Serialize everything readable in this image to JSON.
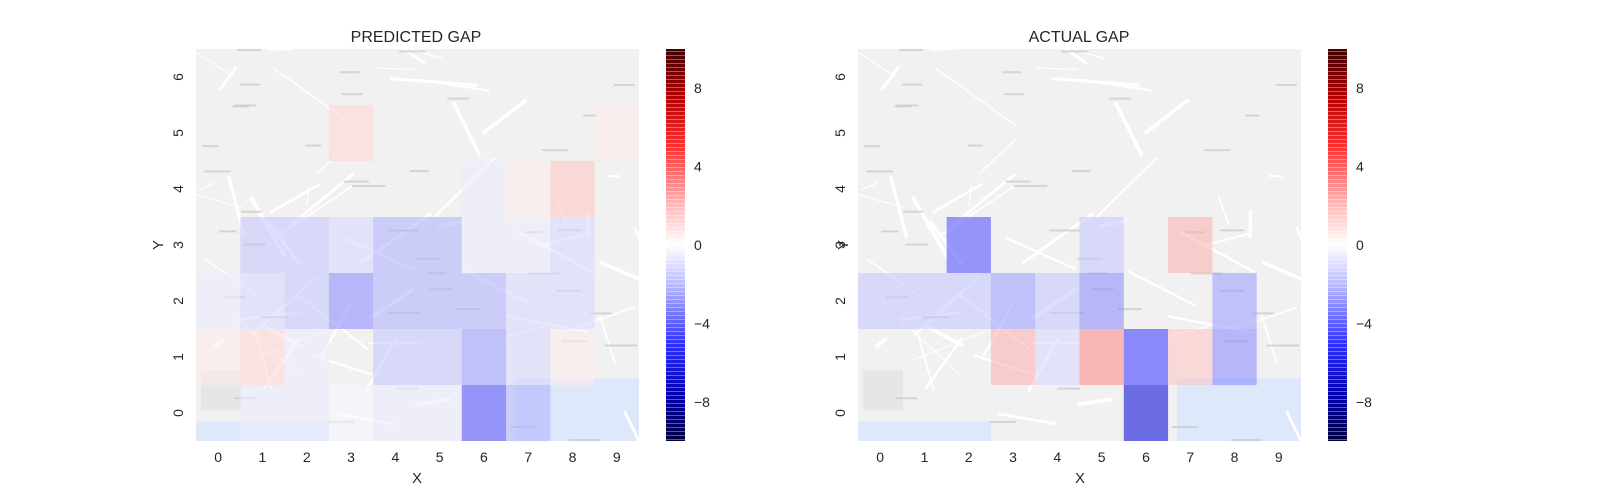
{
  "chart_data": [
    {
      "type": "heatmap",
      "title": "PREDICTED GAP",
      "xlabel": "X",
      "ylabel": "Y",
      "x_ticks": [
        "0",
        "1",
        "2",
        "3",
        "4",
        "5",
        "6",
        "7",
        "8",
        "9"
      ],
      "y_ticks": [
        "0",
        "1",
        "2",
        "3",
        "4",
        "5",
        "6"
      ],
      "xlim": [
        -0.5,
        9.5
      ],
      "ylim": [
        -0.5,
        6.5
      ],
      "background": "city street map",
      "colormap": "seismic",
      "colorbar": {
        "range": [
          -10,
          10
        ],
        "ticks": [
          "8",
          "4",
          "0",
          "−4",
          "−8"
        ],
        "tick_values": [
          8,
          4,
          0,
          -4,
          -8
        ]
      },
      "cells": [
        {
          "x": 1,
          "y": 0,
          "value": -0.5
        },
        {
          "x": 2,
          "y": 0,
          "value": -0.5
        },
        {
          "x": 3,
          "y": 0,
          "value": -0.2
        },
        {
          "x": 4,
          "y": 0,
          "value": -0.5
        },
        {
          "x": 5,
          "y": 0,
          "value": -0.5
        },
        {
          "x": 6,
          "y": 0,
          "value": -4.5
        },
        {
          "x": 7,
          "y": 0,
          "value": -2.0
        },
        {
          "x": 0,
          "y": 1,
          "value": 0.5
        },
        {
          "x": 1,
          "y": 1,
          "value": 1.0
        },
        {
          "x": 2,
          "y": 1,
          "value": -0.5
        },
        {
          "x": 4,
          "y": 1,
          "value": -1.5
        },
        {
          "x": 5,
          "y": 1,
          "value": -1.5
        },
        {
          "x": 6,
          "y": 1,
          "value": -2.5
        },
        {
          "x": 7,
          "y": 1,
          "value": -1.0
        },
        {
          "x": 8,
          "y": 1,
          "value": 0.5
        },
        {
          "x": 0,
          "y": 2,
          "value": -0.5
        },
        {
          "x": 1,
          "y": 2,
          "value": -1.0
        },
        {
          "x": 2,
          "y": 2,
          "value": -1.5
        },
        {
          "x": 3,
          "y": 2,
          "value": -3.0
        },
        {
          "x": 4,
          "y": 2,
          "value": -2.0
        },
        {
          "x": 5,
          "y": 2,
          "value": -2.0
        },
        {
          "x": 6,
          "y": 2,
          "value": -2.0
        },
        {
          "x": 7,
          "y": 2,
          "value": -1.0
        },
        {
          "x": 8,
          "y": 2,
          "value": -1.0
        },
        {
          "x": 1,
          "y": 3,
          "value": -1.5
        },
        {
          "x": 2,
          "y": 3,
          "value": -1.5
        },
        {
          "x": 3,
          "y": 3,
          "value": -1.0
        },
        {
          "x": 4,
          "y": 3,
          "value": -2.0
        },
        {
          "x": 5,
          "y": 3,
          "value": -2.0
        },
        {
          "x": 6,
          "y": 3,
          "value": -0.5
        },
        {
          "x": 7,
          "y": 3,
          "value": -0.5
        },
        {
          "x": 8,
          "y": 3,
          "value": -1.0
        },
        {
          "x": 6,
          "y": 4,
          "value": -0.5
        },
        {
          "x": 7,
          "y": 4,
          "value": 0.5
        },
        {
          "x": 8,
          "y": 4,
          "value": 1.5
        },
        {
          "x": 3,
          "y": 5,
          "value": 1.0
        },
        {
          "x": 9,
          "y": 5,
          "value": 0.5
        }
      ]
    },
    {
      "type": "heatmap",
      "title": "ACTUAL GAP",
      "xlabel": "X",
      "ylabel": "Y",
      "x_ticks": [
        "0",
        "1",
        "2",
        "3",
        "4",
        "5",
        "6",
        "7",
        "8",
        "9"
      ],
      "y_ticks": [
        "0",
        "1",
        "2",
        "3",
        "4",
        "5",
        "6"
      ],
      "xlim": [
        -0.5,
        9.5
      ],
      "ylim": [
        -0.5,
        6.5
      ],
      "background": "city street map",
      "colormap": "seismic",
      "colorbar": {
        "range": [
          -10,
          10
        ],
        "ticks": [
          "8",
          "4",
          "0",
          "−4",
          "−8"
        ],
        "tick_values": [
          8,
          4,
          0,
          -4,
          -8
        ]
      },
      "cells": [
        {
          "x": 6,
          "y": 0,
          "value": -8.0
        },
        {
          "x": 3,
          "y": 1,
          "value": 2.0
        },
        {
          "x": 4,
          "y": 1,
          "value": -1.0
        },
        {
          "x": 5,
          "y": 1,
          "value": 3.0
        },
        {
          "x": 6,
          "y": 1,
          "value": -5.0
        },
        {
          "x": 7,
          "y": 1,
          "value": 1.5
        },
        {
          "x": 8,
          "y": 1,
          "value": -3.0
        },
        {
          "x": 0,
          "y": 2,
          "value": -1.5
        },
        {
          "x": 1,
          "y": 2,
          "value": -1.5
        },
        {
          "x": 2,
          "y": 2,
          "value": -1.5
        },
        {
          "x": 3,
          "y": 2,
          "value": -2.5
        },
        {
          "x": 4,
          "y": 2,
          "value": -1.5
        },
        {
          "x": 5,
          "y": 2,
          "value": -3.0
        },
        {
          "x": 8,
          "y": 2,
          "value": -2.5
        },
        {
          "x": 2,
          "y": 3,
          "value": -4.5
        },
        {
          "x": 5,
          "y": 3,
          "value": -1.5
        },
        {
          "x": 7,
          "y": 3,
          "value": 2.0
        }
      ]
    }
  ]
}
